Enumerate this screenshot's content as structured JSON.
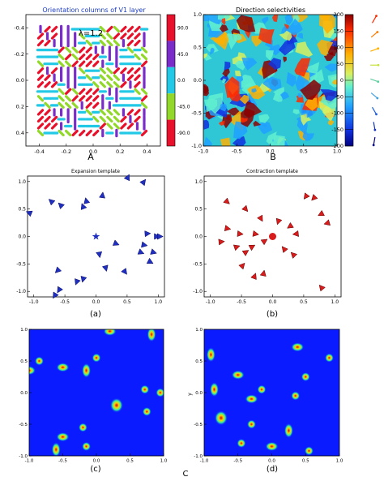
{
  "figure": {
    "caption_A": "A",
    "caption_B": "B",
    "caption_a": "(a)",
    "caption_b": "(b)",
    "caption_c": "(c)",
    "caption_d": "(d)",
    "caption_C": "C"
  },
  "chart_data": [
    {
      "id": "orientation",
      "type": "heatmap",
      "title": "Orientation columns of V1 layer",
      "annotation": "λ=1.2",
      "xlim": [
        -0.5,
        0.5
      ],
      "ylim": [
        0.5,
        -0.5
      ],
      "xticks": [
        -0.4,
        -0.2,
        0.0,
        0.2,
        0.4
      ],
      "yticks": [
        -0.4,
        -0.2,
        0.0,
        0.2,
        0.4
      ],
      "grid": {
        "rows": 16,
        "cols": 16
      },
      "colorbar": {
        "ticks": [
          90.0,
          45.0,
          0.0,
          -45.0,
          -90.0
        ],
        "colors": [
          "#e8102a",
          "#7a2cc9",
          "#22c9e6",
          "#92d82a",
          "#e8102a"
        ]
      }
    },
    {
      "id": "direction",
      "type": "heatmap",
      "title": "Direction selectivities",
      "xlim": [
        -1.0,
        1.0
      ],
      "ylim": [
        -1.0,
        1.0
      ],
      "xticks": [
        -1.0,
        -0.5,
        0.0,
        0.5,
        1.0
      ],
      "yticks": [
        -1.0,
        -0.5,
        0.0,
        0.5,
        1.0
      ],
      "colorbar": {
        "ticks": [
          200,
          150,
          100,
          50,
          0,
          -50,
          -100,
          -150,
          -200
        ],
        "colors": [
          "#0a0a8c",
          "#1a3cff",
          "#1a9cff",
          "#40e0d0",
          "#90f080",
          "#e8e840",
          "#ffb020",
          "#ff5010",
          "#b80000"
        ]
      }
    },
    {
      "id": "expansion",
      "type": "scatter",
      "title": "Expansion template",
      "xlim": [
        -1.1,
        1.1
      ],
      "ylim": [
        -1.1,
        1.1
      ],
      "xticks": [
        -1.0,
        -0.5,
        0.0,
        0.5,
        1.0
      ],
      "yticks": [
        -1.0,
        -0.5,
        0.0,
        0.5,
        1.0
      ],
      "center": {
        "x": 0.0,
        "y": 0.0,
        "marker": "star"
      },
      "color": "#1f2fbf",
      "points": [
        {
          "x": -1.05,
          "y": 0.42
        },
        {
          "x": -0.7,
          "y": 0.62
        },
        {
          "x": -0.55,
          "y": 0.55
        },
        {
          "x": -0.2,
          "y": 0.52
        },
        {
          "x": -0.15,
          "y": 0.62
        },
        {
          "x": 0.1,
          "y": 0.72
        },
        {
          "x": 0.5,
          "y": 1.05
        },
        {
          "x": 0.75,
          "y": 0.97
        },
        {
          "x": 0.3,
          "y": -0.12
        },
        {
          "x": 0.75,
          "y": -0.15
        },
        {
          "x": 0.7,
          "y": -0.28
        },
        {
          "x": 0.9,
          "y": -0.28
        },
        {
          "x": 0.95,
          "y": 0.0
        },
        {
          "x": 1.0,
          "y": 0.0
        },
        {
          "x": 0.8,
          "y": 0.05
        },
        {
          "x": 0.85,
          "y": -0.45
        },
        {
          "x": 0.45,
          "y": -0.62
        },
        {
          "x": 0.15,
          "y": -0.55
        },
        {
          "x": -0.2,
          "y": -0.75
        },
        {
          "x": -0.3,
          "y": -0.8
        },
        {
          "x": -0.58,
          "y": -0.95
        },
        {
          "x": -0.65,
          "y": -1.05
        },
        {
          "x": -0.6,
          "y": -0.6
        },
        {
          "x": 0.05,
          "y": -0.3
        }
      ]
    },
    {
      "id": "contraction",
      "type": "scatter",
      "title": "Contraction template",
      "xlim": [
        -1.1,
        1.1
      ],
      "ylim": [
        -1.1,
        1.1
      ],
      "xticks": [
        -1.0,
        -0.5,
        0.0,
        0.5,
        1.0
      ],
      "yticks": [
        -1.0,
        -0.5,
        0.0,
        0.5,
        1.0
      ],
      "center": {
        "x": 0.0,
        "y": 0.0,
        "marker": "circle"
      },
      "color": "#d81b1b",
      "points": [
        {
          "x": -0.75,
          "y": 0.65
        },
        {
          "x": -0.45,
          "y": 0.52
        },
        {
          "x": -0.2,
          "y": 0.35
        },
        {
          "x": -0.75,
          "y": 0.15
        },
        {
          "x": -0.55,
          "y": 0.05
        },
        {
          "x": -0.3,
          "y": 0.05
        },
        {
          "x": -0.85,
          "y": -0.1
        },
        {
          "x": -0.6,
          "y": -0.2
        },
        {
          "x": -0.45,
          "y": -0.3
        },
        {
          "x": -0.35,
          "y": -0.2
        },
        {
          "x": -0.15,
          "y": -0.1
        },
        {
          "x": -0.5,
          "y": -0.55
        },
        {
          "x": -0.3,
          "y": -0.75
        },
        {
          "x": -0.15,
          "y": -0.7
        },
        {
          "x": 0.1,
          "y": 0.3
        },
        {
          "x": 0.3,
          "y": 0.2
        },
        {
          "x": 0.2,
          "y": -0.25
        },
        {
          "x": 0.35,
          "y": -0.35
        },
        {
          "x": 0.4,
          "y": 0.05
        },
        {
          "x": 0.55,
          "y": 0.75
        },
        {
          "x": 0.68,
          "y": 0.72
        },
        {
          "x": 0.8,
          "y": 0.42
        },
        {
          "x": 0.9,
          "y": 0.25
        },
        {
          "x": 0.8,
          "y": -0.95
        }
      ]
    },
    {
      "id": "map-c",
      "type": "heatmap",
      "xlim": [
        -1.0,
        1.0
      ],
      "ylim": [
        -1.0,
        1.0
      ],
      "xticks": [
        -1.0,
        -0.5,
        0.0,
        0.5,
        1.0
      ],
      "yticks": [
        -1.0,
        -0.5,
        0.0,
        0.5,
        1.0
      ],
      "blobs": [
        {
          "x": 0.2,
          "y": 0.97
        },
        {
          "x": 0.82,
          "y": 0.92
        },
        {
          "x": -0.85,
          "y": 0.5
        },
        {
          "x": -0.5,
          "y": 0.4
        },
        {
          "x": 0.0,
          "y": 0.55
        },
        {
          "x": -0.15,
          "y": 0.35
        },
        {
          "x": -1.0,
          "y": 0.35
        },
        {
          "x": 0.95,
          "y": 0.0
        },
        {
          "x": 0.72,
          "y": 0.05
        },
        {
          "x": 0.3,
          "y": -0.2
        },
        {
          "x": 0.75,
          "y": -0.3
        },
        {
          "x": -0.2,
          "y": -0.55
        },
        {
          "x": -0.5,
          "y": -0.7
        },
        {
          "x": -0.6,
          "y": -0.9
        },
        {
          "x": -0.15,
          "y": -0.85
        }
      ]
    },
    {
      "id": "map-d",
      "type": "heatmap",
      "ylabel": "y",
      "xlim": [
        -1.0,
        1.0
      ],
      "ylim": [
        -1.0,
        1.0
      ],
      "xticks": [
        -1.0,
        -0.5,
        0.0,
        0.5,
        1.0
      ],
      "yticks": [
        -1.0,
        -0.5,
        0.0,
        0.5,
        1.0
      ],
      "blobs": [
        {
          "x": 0.38,
          "y": 0.72
        },
        {
          "x": -0.9,
          "y": 0.6
        },
        {
          "x": 0.85,
          "y": 0.55
        },
        {
          "x": -0.5,
          "y": 0.28
        },
        {
          "x": 0.5,
          "y": 0.25
        },
        {
          "x": -0.85,
          "y": 0.05
        },
        {
          "x": -0.3,
          "y": -0.1
        },
        {
          "x": -0.15,
          "y": 0.05
        },
        {
          "x": 0.35,
          "y": -0.05
        },
        {
          "x": -0.75,
          "y": -0.4
        },
        {
          "x": -0.3,
          "y": -0.5
        },
        {
          "x": -0.45,
          "y": -0.8
        },
        {
          "x": 0.0,
          "y": -0.85
        },
        {
          "x": 0.25,
          "y": -0.6
        },
        {
          "x": 0.55,
          "y": -0.92
        }
      ]
    }
  ]
}
